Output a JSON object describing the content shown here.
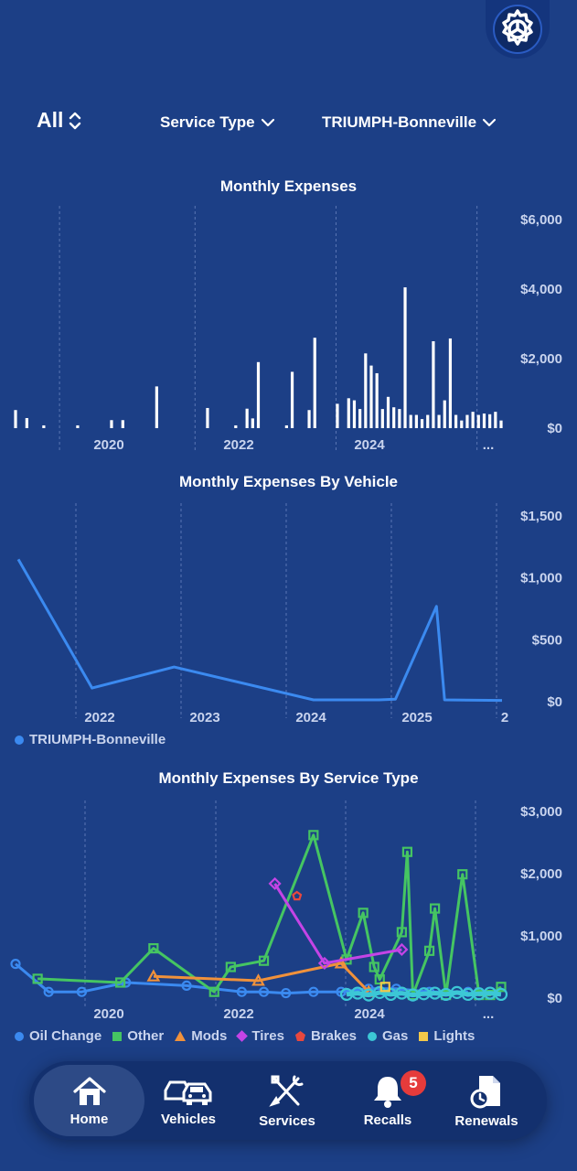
{
  "filters": {
    "period": "All",
    "service_type": "Service Type",
    "vehicle": "TRIUMPH-Bonneville"
  },
  "charts": {
    "monthly_expenses": {
      "title": "Monthly Expenses"
    },
    "by_vehicle": {
      "title": "Monthly Expenses By Vehicle",
      "legend": "TRIUMPH-Bonneville"
    },
    "by_service": {
      "title": "Monthly Expenses By Service Type",
      "legend": [
        {
          "label": "Oil Change",
          "color": "#3b8af0",
          "shape": "circle"
        },
        {
          "label": "Other",
          "color": "#45c562",
          "shape": "square"
        },
        {
          "label": "Mods",
          "color": "#f0913b",
          "shape": "triangle"
        },
        {
          "label": "Tires",
          "color": "#c444e6",
          "shape": "diamond"
        },
        {
          "label": "Brakes",
          "color": "#e8483e",
          "shape": "pentagon"
        },
        {
          "label": "Gas",
          "color": "#3cc7d6",
          "shape": "circle"
        },
        {
          "label": "Lights",
          "color": "#f2c84a",
          "shape": "square"
        }
      ]
    }
  },
  "tabs": [
    {
      "label": "Home",
      "icon": "home-icon"
    },
    {
      "label": "Vehicles",
      "icon": "vehicles-icon"
    },
    {
      "label": "Services",
      "icon": "services-icon"
    },
    {
      "label": "Recalls",
      "icon": "bell-icon",
      "badge": "5"
    },
    {
      "label": "Renewals",
      "icon": "renewals-icon"
    }
  ],
  "chart_data": [
    {
      "type": "bar",
      "title": "Monthly Expenses",
      "x_tick_labels": [
        "2020",
        "2022",
        "2024",
        "..."
      ],
      "y_tick_labels": [
        "$0",
        "$2,000",
        "$4,000",
        "$6,000"
      ],
      "ylim": [
        0,
        6000
      ],
      "grid": "vertical dashed",
      "points": [
        {
          "x": "2019-01",
          "y": 520
        },
        {
          "x": "2019-03",
          "y": 290
        },
        {
          "x": "2019-06",
          "y": 80
        },
        {
          "x": "2019-12",
          "y": 80
        },
        {
          "x": "2020-06",
          "y": 230
        },
        {
          "x": "2020-08",
          "y": 230
        },
        {
          "x": "2021-02",
          "y": 1200
        },
        {
          "x": "2021-11",
          "y": 580
        },
        {
          "x": "2022-04",
          "y": 80
        },
        {
          "x": "2022-06",
          "y": 560
        },
        {
          "x": "2022-07",
          "y": 280
        },
        {
          "x": "2022-08",
          "y": 1900
        },
        {
          "x": "2023-01",
          "y": 80
        },
        {
          "x": "2023-02",
          "y": 1620
        },
        {
          "x": "2023-05",
          "y": 520
        },
        {
          "x": "2023-06",
          "y": 2600
        },
        {
          "x": "2023-10",
          "y": 700
        },
        {
          "x": "2023-12",
          "y": 860
        },
        {
          "x": "2024-01",
          "y": 800
        },
        {
          "x": "2024-02",
          "y": 550
        },
        {
          "x": "2024-03",
          "y": 2150
        },
        {
          "x": "2024-04",
          "y": 1800
        },
        {
          "x": "2024-05",
          "y": 1580
        },
        {
          "x": "2024-06",
          "y": 550
        },
        {
          "x": "2024-07",
          "y": 900
        },
        {
          "x": "2024-08",
          "y": 600
        },
        {
          "x": "2024-09",
          "y": 550
        },
        {
          "x": "2024-10",
          "y": 4050
        },
        {
          "x": "2024-11",
          "y": 380
        },
        {
          "x": "2024-12",
          "y": 380
        },
        {
          "x": "2025-01",
          "y": 260
        },
        {
          "x": "2025-02",
          "y": 380
        },
        {
          "x": "2025-03",
          "y": 2500
        },
        {
          "x": "2025-04",
          "y": 380
        },
        {
          "x": "2025-05",
          "y": 800
        },
        {
          "x": "2025-06",
          "y": 2580
        },
        {
          "x": "2025-07",
          "y": 380
        },
        {
          "x": "2025-08",
          "y": 220
        },
        {
          "x": "2025-09",
          "y": 380
        },
        {
          "x": "2025-10",
          "y": 470
        },
        {
          "x": "2025-11",
          "y": 380
        },
        {
          "x": "2025-12",
          "y": 420
        },
        {
          "x": "2026-01",
          "y": 400
        },
        {
          "x": "2026-02",
          "y": 470
        },
        {
          "x": "2026-03",
          "y": 220
        }
      ]
    },
    {
      "type": "line",
      "title": "Monthly Expenses By Vehicle",
      "x_tick_labels": [
        "2022",
        "2023",
        "2024",
        "2025",
        "2"
      ],
      "y_tick_labels": [
        "$0",
        "$500",
        "$1,000",
        "$1,500"
      ],
      "ylim": [
        0,
        1500
      ],
      "series": [
        {
          "name": "TRIUMPH-Bonneville",
          "color": "#3b8af0",
          "points": [
            {
              "x": "2021-01",
              "y": 1150
            },
            {
              "x": "2021-10",
              "y": 110
            },
            {
              "x": "2022-08",
              "y": 280
            },
            {
              "x": "2024-01",
              "y": 15
            },
            {
              "x": "2024-06",
              "y": 15
            },
            {
              "x": "2024-09",
              "y": 15
            },
            {
              "x": "2024-11",
              "y": 20
            },
            {
              "x": "2025-04",
              "y": 770
            },
            {
              "x": "2025-05",
              "y": 15
            },
            {
              "x": "2025-12",
              "y": 10
            }
          ]
        }
      ]
    },
    {
      "type": "line",
      "title": "Monthly Expenses By Service Type",
      "x_tick_labels": [
        "2020",
        "2022",
        "2024",
        "..."
      ],
      "y_tick_labels": [
        "$0",
        "$1,000",
        "$2,000",
        "$3,000"
      ],
      "ylim": [
        0,
        3000
      ],
      "series": [
        {
          "name": "Oil Change",
          "color": "#3b8af0",
          "marker": "circle",
          "points": [
            {
              "x": "2019-01",
              "y": 550
            },
            {
              "x": "2019-07",
              "y": 100
            },
            {
              "x": "2020-01",
              "y": 100
            },
            {
              "x": "2020-09",
              "y": 250
            },
            {
              "x": "2021-08",
              "y": 200
            },
            {
              "x": "2022-06",
              "y": 100
            },
            {
              "x": "2022-10",
              "y": 100
            },
            {
              "x": "2023-02",
              "y": 80
            },
            {
              "x": "2023-07",
              "y": 100
            },
            {
              "x": "2023-12",
              "y": 100
            },
            {
              "x": "2024-05",
              "y": 150
            },
            {
              "x": "2024-10",
              "y": 150
            },
            {
              "x": "2025-04",
              "y": 100
            },
            {
              "x": "2025-11",
              "y": 100
            }
          ]
        },
        {
          "name": "Other",
          "color": "#45c562",
          "marker": "square",
          "points": [
            {
              "x": "2019-05",
              "y": 310
            },
            {
              "x": "2020-08",
              "y": 250
            },
            {
              "x": "2021-02",
              "y": 800
            },
            {
              "x": "2022-01",
              "y": 100
            },
            {
              "x": "2022-04",
              "y": 500
            },
            {
              "x": "2022-10",
              "y": 600
            },
            {
              "x": "2023-07",
              "y": 2620
            },
            {
              "x": "2024-01",
              "y": 620
            },
            {
              "x": "2024-04",
              "y": 1370
            },
            {
              "x": "2024-06",
              "y": 500
            },
            {
              "x": "2024-07",
              "y": 300
            },
            {
              "x": "2024-11",
              "y": 1060
            },
            {
              "x": "2024-12",
              "y": 2350
            },
            {
              "x": "2025-01",
              "y": 50
            },
            {
              "x": "2025-04",
              "y": 760
            },
            {
              "x": "2025-05",
              "y": 1440
            },
            {
              "x": "2025-07",
              "y": 50
            },
            {
              "x": "2025-10",
              "y": 1990
            },
            {
              "x": "2026-01",
              "y": 50
            },
            {
              "x": "2026-03",
              "y": 50
            },
            {
              "x": "2026-05",
              "y": 180
            }
          ]
        },
        {
          "name": "Mods",
          "color": "#f0913b",
          "marker": "triangle",
          "points": [
            {
              "x": "2021-02",
              "y": 350
            },
            {
              "x": "2022-09",
              "y": 280
            },
            {
              "x": "2023-12",
              "y": 560
            },
            {
              "x": "2024-05",
              "y": 100
            }
          ]
        },
        {
          "name": "Tires",
          "color": "#c444e6",
          "marker": "diamond",
          "points": [
            {
              "x": "2022-12",
              "y": 1840
            },
            {
              "x": "2023-09",
              "y": 560
            },
            {
              "x": "2024-11",
              "y": 780
            }
          ]
        },
        {
          "name": "Brakes",
          "color": "#e8483e",
          "marker": "pentagon",
          "points": [
            {
              "x": "2023-04",
              "y": 1640
            }
          ]
        },
        {
          "name": "Gas",
          "color": "#3cc7d6",
          "marker": "circle",
          "points": [
            {
              "x": "2024-01",
              "y": 60
            },
            {
              "x": "2024-03",
              "y": 80
            },
            {
              "x": "2024-05",
              "y": 50
            },
            {
              "x": "2024-07",
              "y": 90
            },
            {
              "x": "2024-09",
              "y": 60
            },
            {
              "x": "2024-11",
              "y": 80
            },
            {
              "x": "2025-01",
              "y": 50
            },
            {
              "x": "2025-03",
              "y": 70
            },
            {
              "x": "2025-05",
              "y": 80
            },
            {
              "x": "2025-07",
              "y": 60
            },
            {
              "x": "2025-09",
              "y": 90
            },
            {
              "x": "2025-11",
              "y": 60
            },
            {
              "x": "2026-01",
              "y": 70
            },
            {
              "x": "2026-03",
              "y": 80
            },
            {
              "x": "2026-05",
              "y": 60
            }
          ]
        },
        {
          "name": "Lights",
          "color": "#f2c84a",
          "marker": "square",
          "points": [
            {
              "x": "2024-08",
              "y": 180
            }
          ]
        }
      ]
    }
  ]
}
